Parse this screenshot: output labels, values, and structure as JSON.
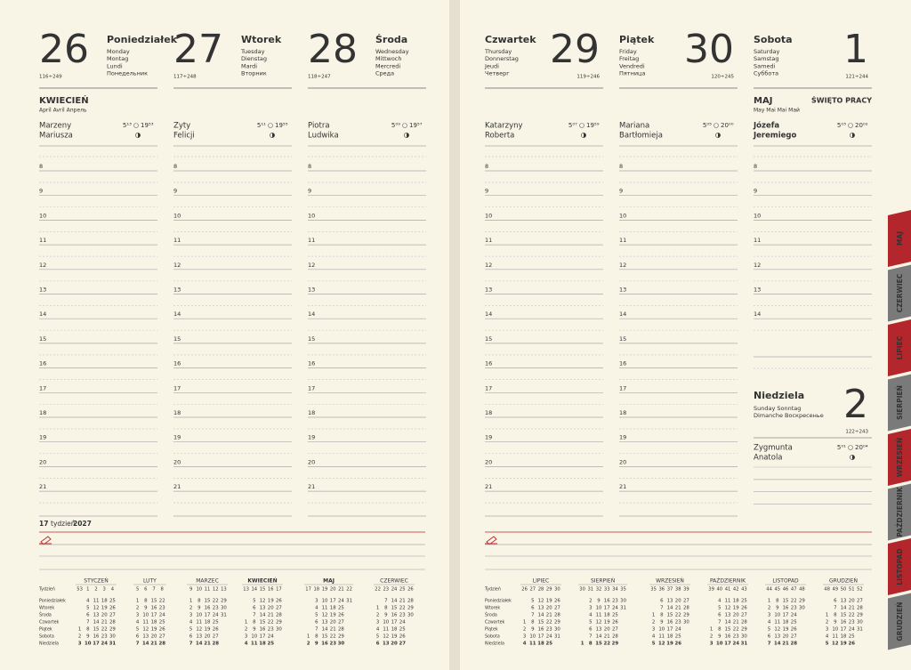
{
  "days": [
    {
      "number": "26",
      "name": "Poniedziałek",
      "translations": [
        "Monday",
        "Montag",
        "Lundi",
        "Понедельник"
      ],
      "day_of_year": "116÷249",
      "name_days": [
        "Marzeny",
        "Mariusza"
      ],
      "sunrise": "5¹³",
      "sunset": "19⁵³"
    },
    {
      "number": "27",
      "name": "Wtorek",
      "translations": [
        "Tuesday",
        "Dienstag",
        "Mardi",
        "Вторник"
      ],
      "day_of_year": "117÷248",
      "name_days": [
        "Zyty",
        "Felicji"
      ],
      "sunrise": "5¹¹",
      "sunset": "19⁵⁵"
    },
    {
      "number": "28",
      "name": "Środa",
      "translations": [
        "Wednesday",
        "Mittwoch",
        "Mercredi",
        "Среда"
      ],
      "day_of_year": "118÷247",
      "name_days": [
        "Piotra",
        "Ludwika"
      ],
      "sunrise": "5⁰⁹",
      "sunset": "19⁵⁷"
    },
    {
      "number": "29",
      "name": "Czwartek",
      "translations": [
        "Thursday",
        "Donnerstag",
        "Jeudi",
        "Четверг"
      ],
      "day_of_year": "119÷246",
      "name_days": [
        "Katarzyny",
        "Roberta"
      ],
      "sunrise": "5⁰⁷",
      "sunset": "19⁵⁹"
    },
    {
      "number": "30",
      "name": "Piątek",
      "translations": [
        "Friday",
        "Freitag",
        "Vendredi",
        "Пятница"
      ],
      "day_of_year": "120÷245",
      "name_days": [
        "Mariana",
        "Bartłomieja"
      ],
      "sunrise": "5⁰⁵",
      "sunset": "20⁰⁰"
    },
    {
      "number": "1",
      "name": "Sobota",
      "translations": [
        "Saturday",
        "Samstag",
        "Samedi",
        "Суббота"
      ],
      "day_of_year": "121÷244",
      "name_days": [
        "Józefa",
        "Jeremiego"
      ],
      "sunrise": "5⁰³",
      "sunset": "20⁰²"
    },
    {
      "number": "2",
      "name": "Niedziela",
      "translations": [
        "Sunday Sonntag",
        "Dimanche Воскресенье"
      ],
      "day_of_year": "122÷243",
      "name_days": [
        "Zygmunta",
        "Anatola"
      ],
      "sunrise": "5⁰¹",
      "sunset": "20⁰⁴"
    }
  ],
  "months": [
    {
      "name": "KWIECIEŃ",
      "translations": "April  Avril  Апрель"
    },
    {
      "name": "MAJ",
      "translations": "May  Mai  Mai  Май",
      "holiday": "ŚWIĘTO PRACY"
    }
  ],
  "hours": [
    "8",
    "9",
    "10",
    "11",
    "12",
    "13",
    "14",
    "15",
    "16",
    "17",
    "18",
    "19",
    "20",
    "21"
  ],
  "week": {
    "number": "17",
    "word": "tydzień",
    "year": "2027"
  },
  "weekday_labels": [
    "Tydzień",
    "Poniedziałek",
    "Wtorek",
    "Środa",
    "Czwartek",
    "Piątek",
    "Sobota",
    "Niedziela"
  ],
  "mini_calendars": [
    {
      "name": "STYCZEŃ",
      "weeks": [
        "53",
        "1",
        "2",
        "3",
        "4"
      ],
      "rows": [
        [
          null,
          "4",
          "11",
          "18",
          "25"
        ],
        [
          null,
          "5",
          "12",
          "19",
          "26"
        ],
        [
          null,
          "6",
          "13",
          "20",
          "27"
        ],
        [
          null,
          "7",
          "14",
          "21",
          "28"
        ],
        [
          "1",
          "8",
          "15",
          "22",
          "29"
        ],
        [
          "2",
          "9",
          "16",
          "23",
          "30"
        ],
        [
          "3",
          "10",
          "17",
          "24",
          "31"
        ]
      ]
    },
    {
      "name": "LUTY",
      "weeks": [
        "5",
        "6",
        "7",
        "8"
      ],
      "rows": [
        [
          "1",
          "8",
          "15",
          "22"
        ],
        [
          "2",
          "9",
          "16",
          "23"
        ],
        [
          "3",
          "10",
          "17",
          "24"
        ],
        [
          "4",
          "11",
          "18",
          "25"
        ],
        [
          "5",
          "12",
          "19",
          "26"
        ],
        [
          "6",
          "13",
          "20",
          "27"
        ],
        [
          "7",
          "14",
          "21",
          "28"
        ]
      ]
    },
    {
      "name": "MARZEC",
      "weeks": [
        "9",
        "10",
        "11",
        "12",
        "13"
      ],
      "rows": [
        [
          "1",
          "8",
          "15",
          "22",
          "29"
        ],
        [
          "2",
          "9",
          "16",
          "23",
          "30"
        ],
        [
          "3",
          "10",
          "17",
          "24",
          "31"
        ],
        [
          "4",
          "11",
          "18",
          "25",
          null
        ],
        [
          "5",
          "12",
          "19",
          "26",
          null
        ],
        [
          "6",
          "13",
          "20",
          "27",
          null
        ],
        [
          "7",
          "14",
          "21",
          "28",
          null
        ]
      ]
    },
    {
      "name": "KWIECIEŃ",
      "weeks": [
        "13",
        "14",
        "15",
        "16",
        "17"
      ],
      "rows": [
        [
          null,
          "5",
          "12",
          "19",
          "26"
        ],
        [
          null,
          "6",
          "13",
          "20",
          "27"
        ],
        [
          null,
          "7",
          "14",
          "21",
          "28"
        ],
        [
          "1",
          "8",
          "15",
          "22",
          "29"
        ],
        [
          "2",
          "9",
          "16",
          "23",
          "30"
        ],
        [
          "3",
          "10",
          "17",
          "24",
          null
        ],
        [
          "4",
          "11",
          "18",
          "25",
          null
        ]
      ]
    },
    {
      "name": "MAJ",
      "weeks": [
        "17",
        "18",
        "19",
        "20",
        "21",
        "22"
      ],
      "rows": [
        [
          null,
          "3",
          "10",
          "17",
          "24",
          "31"
        ],
        [
          null,
          "4",
          "11",
          "18",
          "25",
          null
        ],
        [
          null,
          "5",
          "12",
          "19",
          "26",
          null
        ],
        [
          null,
          "6",
          "13",
          "20",
          "27",
          null
        ],
        [
          null,
          "7",
          "14",
          "21",
          "28",
          null
        ],
        [
          "1",
          "8",
          "15",
          "22",
          "29",
          null
        ],
        [
          "2",
          "9",
          "16",
          "23",
          "30",
          null
        ]
      ]
    },
    {
      "name": "CZERWIEC",
      "weeks": [
        "22",
        "23",
        "24",
        "25",
        "26"
      ],
      "rows": [
        [
          null,
          "7",
          "14",
          "21",
          "28"
        ],
        [
          "1",
          "8",
          "15",
          "22",
          "29"
        ],
        [
          "2",
          "9",
          "16",
          "23",
          "30"
        ],
        [
          "3",
          "10",
          "17",
          "24",
          null
        ],
        [
          "4",
          "11",
          "18",
          "25",
          null
        ],
        [
          "5",
          "12",
          "19",
          "26",
          null
        ],
        [
          "6",
          "13",
          "20",
          "27",
          null
        ]
      ]
    },
    {
      "name": "LIPIEC",
      "weeks": [
        "26",
        "27",
        "28",
        "29",
        "30"
      ],
      "rows": [
        [
          null,
          "5",
          "12",
          "19",
          "26"
        ],
        [
          null,
          "6",
          "13",
          "20",
          "27"
        ],
        [
          null,
          "7",
          "14",
          "21",
          "28"
        ],
        [
          "1",
          "8",
          "15",
          "22",
          "29"
        ],
        [
          "2",
          "9",
          "16",
          "23",
          "30"
        ],
        [
          "3",
          "10",
          "17",
          "24",
          "31"
        ],
        [
          "4",
          "11",
          "18",
          "25",
          null
        ]
      ]
    },
    {
      "name": "SIERPIEŃ",
      "weeks": [
        "30",
        "31",
        "32",
        "33",
        "34",
        "35"
      ],
      "rows": [
        [
          null,
          "2",
          "9",
          "16",
          "23",
          "30"
        ],
        [
          null,
          "3",
          "10",
          "17",
          "24",
          "31"
        ],
        [
          null,
          "4",
          "11",
          "18",
          "25",
          null
        ],
        [
          null,
          "5",
          "12",
          "19",
          "26",
          null
        ],
        [
          null,
          "6",
          "13",
          "20",
          "27",
          null
        ],
        [
          null,
          "7",
          "14",
          "21",
          "28",
          null
        ],
        [
          "1",
          "8",
          "15",
          "22",
          "29",
          null
        ]
      ]
    },
    {
      "name": "WRZESIEŃ",
      "weeks": [
        "35",
        "36",
        "37",
        "38",
        "39"
      ],
      "rows": [
        [
          null,
          "6",
          "13",
          "20",
          "27"
        ],
        [
          null,
          "7",
          "14",
          "21",
          "28"
        ],
        [
          "1",
          "8",
          "15",
          "22",
          "29"
        ],
        [
          "2",
          "9",
          "16",
          "23",
          "30"
        ],
        [
          "3",
          "10",
          "17",
          "24",
          null
        ],
        [
          "4",
          "11",
          "18",
          "25",
          null
        ],
        [
          "5",
          "12",
          "19",
          "26",
          null
        ]
      ]
    },
    {
      "name": "PAŹDZIERNIK",
      "weeks": [
        "39",
        "40",
        "41",
        "42",
        "43"
      ],
      "rows": [
        [
          null,
          "4",
          "11",
          "18",
          "25"
        ],
        [
          null,
          "5",
          "12",
          "19",
          "26"
        ],
        [
          null,
          "6",
          "13",
          "20",
          "27"
        ],
        [
          null,
          "7",
          "14",
          "21",
          "28"
        ],
        [
          "1",
          "8",
          "15",
          "22",
          "29"
        ],
        [
          "2",
          "9",
          "16",
          "23",
          "30"
        ],
        [
          "3",
          "10",
          "17",
          "24",
          "31"
        ]
      ]
    },
    {
      "name": "LISTOPAD",
      "weeks": [
        "44",
        "45",
        "46",
        "47",
        "48"
      ],
      "rows": [
        [
          "1",
          "8",
          "15",
          "22",
          "29"
        ],
        [
          "2",
          "9",
          "16",
          "23",
          "30"
        ],
        [
          "3",
          "10",
          "17",
          "24",
          null
        ],
        [
          "4",
          "11",
          "18",
          "25",
          null
        ],
        [
          "5",
          "12",
          "19",
          "26",
          null
        ],
        [
          "6",
          "13",
          "20",
          "27",
          null
        ],
        [
          "7",
          "14",
          "21",
          "28",
          null
        ]
      ]
    },
    {
      "name": "GRUDZIEŃ",
      "weeks": [
        "48",
        "49",
        "50",
        "51",
        "52"
      ],
      "rows": [
        [
          null,
          "6",
          "13",
          "20",
          "27"
        ],
        [
          null,
          "7",
          "14",
          "21",
          "28"
        ],
        [
          "1",
          "8",
          "15",
          "22",
          "29"
        ],
        [
          "2",
          "9",
          "16",
          "23",
          "30"
        ],
        [
          "3",
          "10",
          "17",
          "24",
          "31"
        ],
        [
          "4",
          "11",
          "18",
          "25",
          null
        ],
        [
          "5",
          "12",
          "19",
          "26",
          null
        ]
      ]
    }
  ],
  "tabs": [
    "MAJ",
    "CZERWIEC",
    "LIPIEC",
    "SIERPIEŃ",
    "WRZESIEŃ",
    "PAŹDZIERNIK",
    "LISTOPAD",
    "GRUDZIEŃ"
  ]
}
